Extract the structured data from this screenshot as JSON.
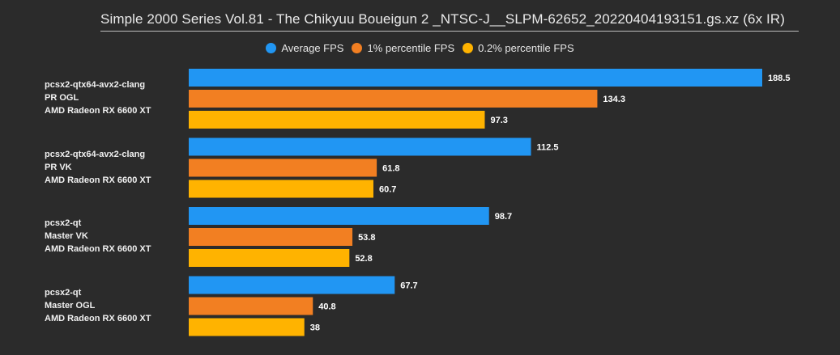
{
  "chart_data": {
    "type": "bar",
    "orientation": "horizontal",
    "title": "Simple 2000 Series Vol.81 - The Chikyuu Boueigun 2 _NTSC-J__SLPM-62652_20220404193151.gs.xz (6x IR)",
    "legend_position": "top",
    "categories": [
      [
        "pcsx2-qtx64-avx2-clang",
        "PR OGL",
        "AMD Radeon RX 6600 XT"
      ],
      [
        "pcsx2-qtx64-avx2-clang",
        "PR VK",
        "AMD Radeon RX 6600 XT"
      ],
      [
        "pcsx2-qt",
        "Master VK",
        "AMD Radeon RX 6600 XT"
      ],
      [
        "pcsx2-qt",
        "Master OGL",
        "AMD Radeon RX 6600 XT"
      ]
    ],
    "series": [
      {
        "name": "Average FPS",
        "color": "#2196f3",
        "values": [
          188.5,
          112.5,
          98.7,
          67.7
        ],
        "labels": [
          "188.5",
          "112.5",
          "98.7",
          "67.7"
        ]
      },
      {
        "name": "1% percentile FPS",
        "color": "#f27f22",
        "values": [
          134.3,
          61.8,
          53.8,
          40.8
        ],
        "labels": [
          "134.3",
          "61.8",
          "53.8",
          "40.8"
        ]
      },
      {
        "name": "0.2% percentile FPS",
        "color": "#ffb300",
        "values": [
          97.3,
          60.7,
          52.8,
          38
        ],
        "labels": [
          "97.3",
          "60.7",
          "52.8",
          "38"
        ]
      }
    ],
    "xlim": [
      0,
      188.5
    ],
    "grid": false
  }
}
